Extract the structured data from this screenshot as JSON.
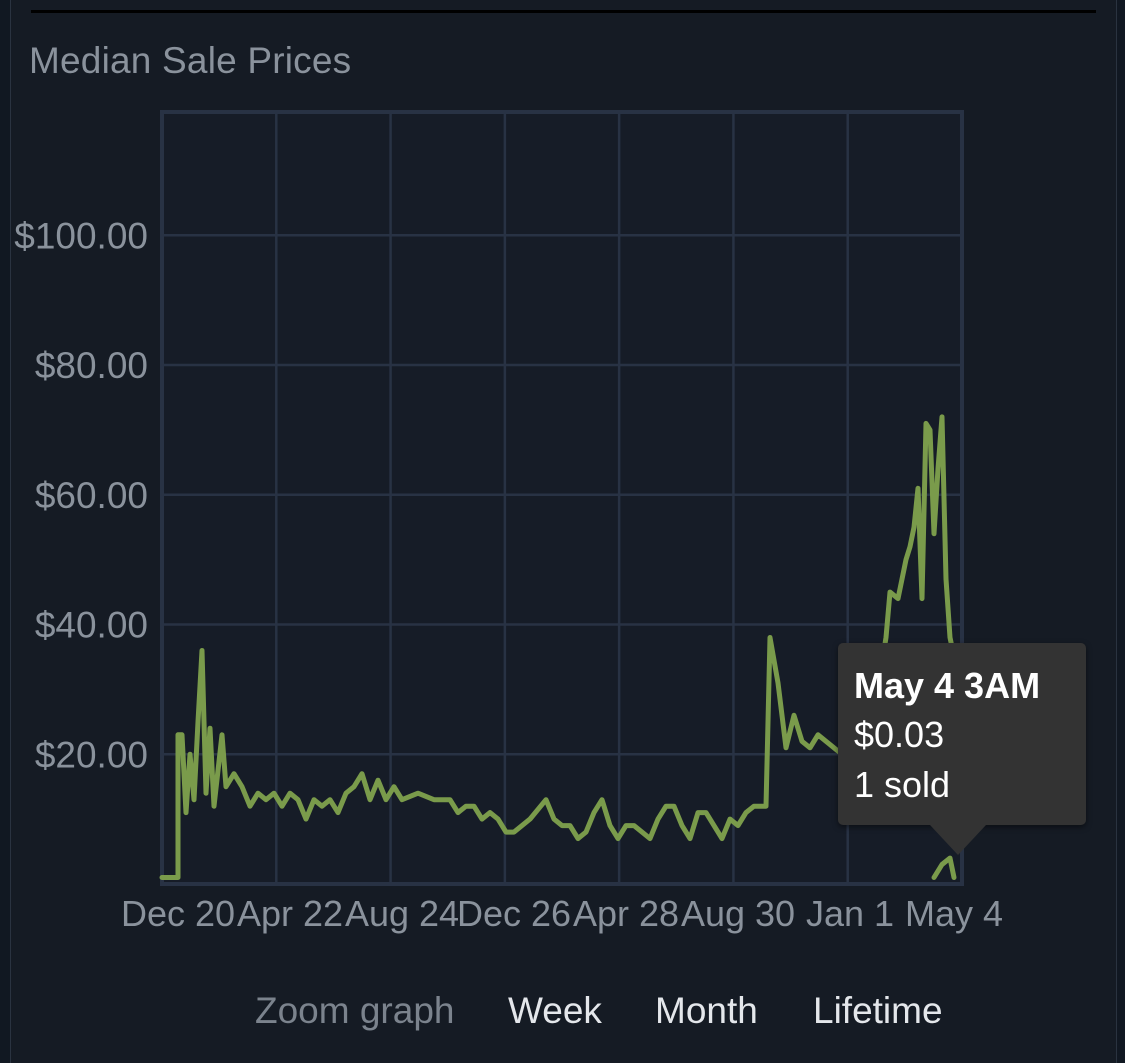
{
  "header": {
    "title": "Median Sale Prices"
  },
  "chart_data": {
    "type": "line",
    "y_tick_labels": [
      "$20.00",
      "$40.00",
      "$60.00",
      "$80.00",
      "$100.00"
    ],
    "y_ticks": [
      20,
      40,
      60,
      80,
      100
    ],
    "ylim": [
      0,
      119
    ],
    "x_tick_labels": [
      "Dec 20",
      "Apr 22",
      "Aug 24",
      "Dec 26",
      "Apr 28",
      "Aug 30",
      "Jan 1",
      "May 4"
    ],
    "x_ticks": [
      0.02,
      0.16,
      0.3,
      0.44,
      0.58,
      0.72,
      0.86,
      0.99
    ],
    "grid": true,
    "line_color": "#7a9b4b",
    "series": [
      {
        "points": [
          [
            0.0,
            1
          ],
          [
            0.02,
            1
          ],
          [
            0.02,
            23
          ],
          [
            0.025,
            23
          ],
          [
            0.03,
            11
          ],
          [
            0.035,
            20
          ],
          [
            0.04,
            13
          ],
          [
            0.045,
            25
          ],
          [
            0.05,
            36
          ],
          [
            0.055,
            14
          ],
          [
            0.06,
            24
          ],
          [
            0.065,
            12
          ],
          [
            0.075,
            23
          ],
          [
            0.08,
            15
          ],
          [
            0.09,
            17
          ],
          [
            0.1,
            15
          ],
          [
            0.11,
            12
          ],
          [
            0.12,
            14
          ],
          [
            0.13,
            13
          ],
          [
            0.14,
            14
          ],
          [
            0.15,
            12
          ],
          [
            0.16,
            14
          ],
          [
            0.17,
            13
          ],
          [
            0.18,
            10
          ],
          [
            0.19,
            13
          ],
          [
            0.2,
            12
          ],
          [
            0.21,
            13
          ],
          [
            0.22,
            11
          ],
          [
            0.23,
            14
          ],
          [
            0.24,
            15
          ],
          [
            0.25,
            17
          ],
          [
            0.26,
            13
          ],
          [
            0.27,
            16
          ],
          [
            0.28,
            13
          ],
          [
            0.29,
            15
          ],
          [
            0.3,
            13
          ],
          [
            0.32,
            14
          ],
          [
            0.34,
            13
          ],
          [
            0.36,
            13
          ],
          [
            0.37,
            11
          ],
          [
            0.38,
            12
          ],
          [
            0.39,
            12
          ],
          [
            0.4,
            10
          ],
          [
            0.41,
            11
          ],
          [
            0.42,
            10
          ],
          [
            0.43,
            8
          ],
          [
            0.44,
            8
          ],
          [
            0.45,
            9
          ],
          [
            0.46,
            10
          ],
          [
            0.48,
            13
          ],
          [
            0.49,
            10
          ],
          [
            0.5,
            9
          ],
          [
            0.51,
            9
          ],
          [
            0.52,
            7
          ],
          [
            0.53,
            8
          ],
          [
            0.54,
            11
          ],
          [
            0.55,
            13
          ],
          [
            0.56,
            9
          ],
          [
            0.57,
            7
          ],
          [
            0.58,
            9
          ],
          [
            0.59,
            9
          ],
          [
            0.6,
            8
          ],
          [
            0.61,
            7
          ],
          [
            0.62,
            10
          ],
          [
            0.63,
            12
          ],
          [
            0.64,
            12
          ],
          [
            0.65,
            9
          ],
          [
            0.66,
            7
          ],
          [
            0.67,
            11
          ],
          [
            0.68,
            11
          ],
          [
            0.69,
            9
          ],
          [
            0.7,
            7
          ],
          [
            0.71,
            10
          ],
          [
            0.72,
            9
          ],
          [
            0.73,
            11
          ],
          [
            0.74,
            12
          ],
          [
            0.755,
            12
          ],
          [
            0.76,
            38
          ],
          [
            0.77,
            31
          ],
          [
            0.78,
            21
          ],
          [
            0.79,
            26
          ],
          [
            0.8,
            22
          ],
          [
            0.81,
            21
          ],
          [
            0.82,
            23
          ],
          [
            0.83,
            22
          ],
          [
            0.84,
            21
          ],
          [
            0.85,
            20
          ],
          [
            0.86,
            19
          ],
          [
            0.87,
            17
          ],
          [
            0.88,
            19
          ],
          [
            0.885,
            22
          ],
          [
            0.89,
            24
          ],
          [
            0.895,
            30
          ],
          [
            0.9,
            34
          ],
          [
            0.905,
            38
          ],
          [
            0.91,
            45
          ],
          [
            0.92,
            44
          ],
          [
            0.93,
            50
          ],
          [
            0.935,
            52
          ],
          [
            0.94,
            55
          ],
          [
            0.945,
            61
          ],
          [
            0.95,
            44
          ],
          [
            0.955,
            71
          ],
          [
            0.96,
            70
          ],
          [
            0.965,
            54
          ],
          [
            0.97,
            64
          ],
          [
            0.975,
            72
          ],
          [
            0.98,
            47
          ],
          [
            0.985,
            38
          ],
          [
            0.99,
            35
          ]
        ]
      },
      {
        "points": [
          [
            0.965,
            1
          ],
          [
            0.975,
            3
          ],
          [
            0.985,
            4
          ],
          [
            0.99,
            1
          ]
        ]
      }
    ]
  },
  "tooltip": {
    "date": "May 4 3AM",
    "price": "$0.03",
    "sold": "1 sold"
  },
  "zoom": {
    "label": "Zoom graph",
    "options": [
      "Week",
      "Month",
      "Lifetime"
    ]
  }
}
